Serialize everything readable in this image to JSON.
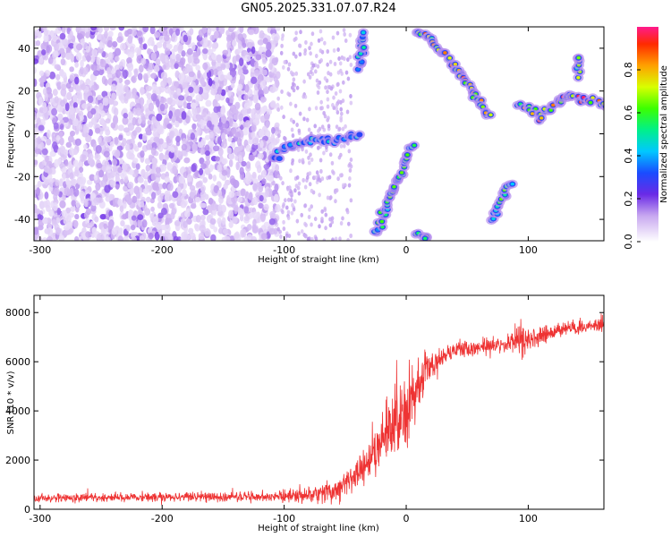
{
  "title": "GN05.2025.331.07.07.R24",
  "chart_data": [
    {
      "type": "heatmap",
      "xlabel": "Height of straight line (km)",
      "ylabel": "Frequency (Hz)",
      "xlim": [
        -305,
        162
      ],
      "ylim": [
        -50,
        50
      ],
      "xticks": [
        -300,
        -200,
        -100,
        0,
        100
      ],
      "yticks": [
        -40,
        -20,
        0,
        20,
        40
      ],
      "colorbar": {
        "label": "Normalized spectral amplitude",
        "range": [
          0,
          1
        ],
        "ticks": [
          "0.0",
          "0.2",
          "0.4",
          "0.6",
          "0.8"
        ],
        "tick_values": [
          0.0,
          0.2,
          0.4,
          0.6,
          0.8
        ]
      },
      "features": [
        {
          "name": "diffuse-noise",
          "x": [
            -305,
            -105
          ],
          "y": [
            -50,
            50
          ],
          "amplitude": 0.15
        },
        {
          "name": "zero-doppler-band",
          "points": [
            [
              -110,
              -12
            ],
            [
              -95,
              -5
            ],
            [
              -80,
              -3
            ],
            [
              -60,
              -3
            ],
            [
              -40,
              0
            ]
          ],
          "amplitude": 0.45
        },
        {
          "name": "branch-1",
          "points": [
            [
              -38,
              31
            ],
            [
              -35,
              47
            ]
          ],
          "amplitude": 0.5
        },
        {
          "name": "branch-2",
          "points": [
            [
              -25,
              -47
            ],
            [
              5,
              -5
            ]
          ],
          "amplitude": 0.6
        },
        {
          "name": "branch-3",
          "points": [
            [
              8,
              48
            ],
            [
              22,
              43
            ],
            [
              45,
              28
            ],
            [
              68,
              8
            ]
          ],
          "amplitude": 0.85
        },
        {
          "name": "branch-4",
          "points": [
            [
              70,
              -40
            ],
            [
              85,
              -23
            ]
          ],
          "amplitude": 0.6
        },
        {
          "name": "branch-5",
          "points": [
            [
              92,
              15
            ],
            [
              110,
              8
            ],
            [
              125,
              15
            ],
            [
              135,
              18
            ],
            [
              150,
              15
            ],
            [
              162,
              14
            ]
          ],
          "amplitude": 0.9
        },
        {
          "name": "branch-6",
          "points": [
            [
              142,
              27
            ],
            [
              142,
              36
            ]
          ],
          "amplitude": 0.7
        },
        {
          "name": "branch-7",
          "points": [
            [
              10,
              -47
            ],
            [
              18,
              -48
            ]
          ],
          "amplitude": 0.7
        }
      ]
    },
    {
      "type": "line",
      "xlabel": "Height of straight line (km)",
      "ylabel": "SNR (10 * v/v)",
      "xlim": [
        -305,
        162
      ],
      "ylim": [
        0,
        8700
      ],
      "xticks": [
        -300,
        -200,
        -100,
        0,
        100
      ],
      "yticks": [
        0,
        2000,
        4000,
        6000,
        8000
      ],
      "series": [
        {
          "color": "#ee3333",
          "x": [
            -305,
            -250,
            -200,
            -150,
            -110,
            -90,
            -75,
            -60,
            -50,
            -40,
            -30,
            -20,
            -10,
            0,
            10,
            20,
            30,
            40,
            60,
            80,
            95,
            100,
            120,
            140,
            162
          ],
          "y": [
            450,
            480,
            500,
            510,
            520,
            560,
            600,
            750,
            1000,
            1500,
            2100,
            2600,
            3300,
            4000,
            4900,
            5900,
            6300,
            6500,
            6600,
            6700,
            7000,
            6900,
            7200,
            7400,
            7500
          ],
          "noise": [
            150,
            150,
            160,
            160,
            170,
            250,
            300,
            350,
            450,
            550,
            800,
            1000,
            1200,
            1200,
            1000,
            500,
            350,
            300,
            250,
            250,
            700,
            400,
            250,
            250,
            250
          ]
        }
      ]
    }
  ]
}
